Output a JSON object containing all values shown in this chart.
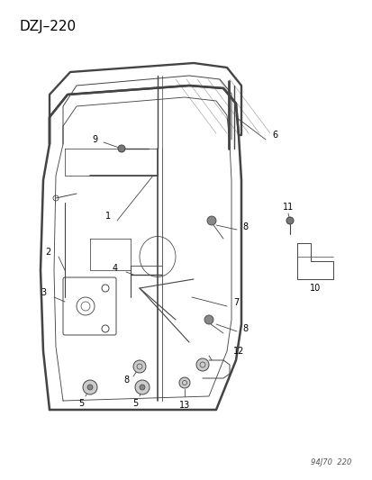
{
  "title": "DZJ–220",
  "footer": "94J70  220",
  "bg_color": "#ffffff",
  "title_fontsize": 11,
  "footer_fontsize": 6,
  "fig_width": 4.14,
  "fig_height": 5.33,
  "dpi": 100,
  "line_color": "#444444",
  "label_fontsize": 7,
  "leader_lw": 0.6,
  "main_lw": 1.4,
  "thin_lw": 0.7,
  "shade_color": "#bbbbbb"
}
